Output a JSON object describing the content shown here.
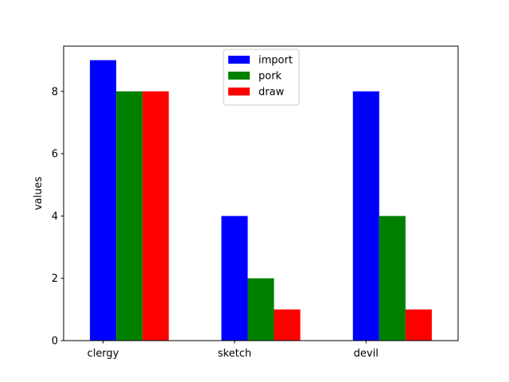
{
  "chart_data": {
    "type": "bar",
    "title": "",
    "xlabel": "",
    "ylabel": "values",
    "categories": [
      "clergy",
      "sketch",
      "devil"
    ],
    "series": [
      {
        "name": "import",
        "color": "#0000ff",
        "values": [
          9,
          4,
          8
        ]
      },
      {
        "name": "pork",
        "color": "#008000",
        "values": [
          8,
          2,
          4
        ]
      },
      {
        "name": "draw",
        "color": "#ff0000",
        "values": [
          8,
          1,
          1
        ]
      }
    ],
    "ylim": [
      0,
      9.45
    ],
    "yticks": [
      0,
      2,
      4,
      6,
      8
    ],
    "grid": false,
    "legend": "top-center"
  }
}
